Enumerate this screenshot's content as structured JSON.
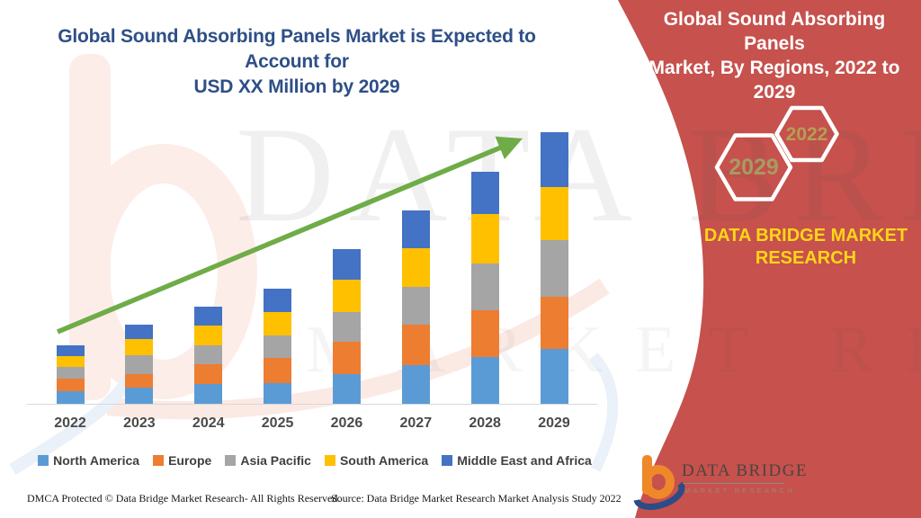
{
  "titles": {
    "left_line1": "Global Sound Absorbing Panels Market is Expected to Account for",
    "left_line2": "USD XX Million by 2029",
    "right_line1": "Global Sound Absorbing Panels",
    "right_line2": "Market, By Regions, 2022 to 2029"
  },
  "side_panel": {
    "panel_color": "#C6514D",
    "hexagon_years": [
      {
        "label": "2029",
        "text_color": "#A79B62"
      },
      {
        "label": "2022",
        "text_color": "#B89E52"
      }
    ],
    "brand_line1": "DATA BRIDGE MARKET",
    "brand_line2": "RESEARCH",
    "brand_text_color": "#FFD616"
  },
  "watermark": {
    "line1": "DATA BRIDGE",
    "line2": "MARKET RESEARCH"
  },
  "chart_data": {
    "type": "bar",
    "stacked": true,
    "title": "Global Sound Absorbing Panels Market, By Regions, 2022 to 2029",
    "categories": [
      "2022",
      "2023",
      "2024",
      "2025",
      "2026",
      "2027",
      "2028",
      "2029"
    ],
    "series": [
      {
        "name": "North America",
        "color": "#5B9BD5",
        "values": [
          14,
          18,
          22,
          23,
          33,
          43,
          52,
          61
        ]
      },
      {
        "name": "Europe",
        "color": "#ED7D31",
        "values": [
          14,
          15,
          22,
          28,
          36,
          45,
          52,
          58
        ]
      },
      {
        "name": "Asia Pacific",
        "color": "#A5A5A5",
        "values": [
          13,
          21,
          21,
          25,
          33,
          42,
          52,
          63
        ]
      },
      {
        "name": "South America",
        "color": "#FFC000",
        "values": [
          12,
          18,
          22,
          26,
          36,
          43,
          55,
          59
        ]
      },
      {
        "name": "Middle East and Africa",
        "color": "#4472C4",
        "values": [
          12,
          16,
          21,
          26,
          34,
          42,
          47,
          61
        ]
      }
    ],
    "totals": [
      65,
      88,
      108,
      128,
      172,
      215,
      258,
      302
    ],
    "xlabel": "",
    "ylabel": "",
    "value_unit": "relative units (actual USD values undisclosed, shown as XX Million)",
    "ylim": [
      0,
      310
    ],
    "y_axis_visible": false,
    "gridlines": false,
    "legend_position": "bottom",
    "trend_arrow": true,
    "trend_arrow_color": "#6FAC47"
  },
  "footer": {
    "dmca": "DMCA Protected © Data Bridge Market Research- All Rights Reserved.",
    "source": "Source: Data Bridge Market Research Market Analysis Study 2022"
  },
  "logo": {
    "title": "DATA BRIDGE",
    "subtitle": "MARKET RESEARCH"
  },
  "colors": {
    "title_navy": "#2E4F87",
    "panel_maroon": "#C6514D",
    "brand_yellow": "#FFD616",
    "arrow_green": "#6FAC47",
    "axis_label_gray": "#4a4a4a"
  }
}
